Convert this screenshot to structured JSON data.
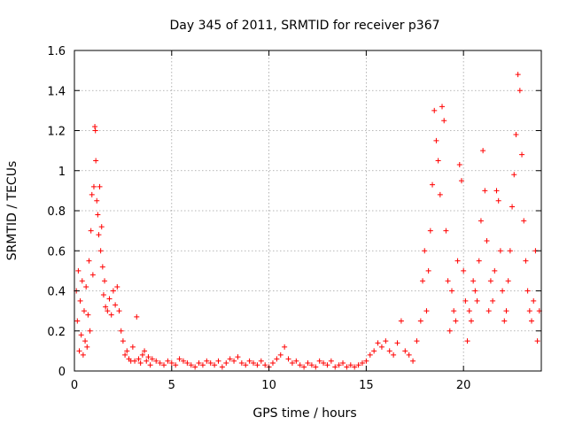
{
  "chart_data": {
    "type": "scatter",
    "title": "Day 345 of 2011, SRMTID for receiver p367",
    "xlabel": "GPS time / hours",
    "ylabel": "SRMTID / TECUs",
    "xlim": [
      0,
      24
    ],
    "ylim": [
      0,
      1.6
    ],
    "xticks": [
      0,
      5,
      10,
      15,
      20
    ],
    "xtick_labels": [
      "0",
      "5",
      "10",
      "15",
      "20"
    ],
    "yticks": [
      0,
      0.2,
      0.4,
      0.6,
      0.8,
      1,
      1.2,
      1.4,
      1.6
    ],
    "ytick_labels": [
      "0",
      "0.2",
      "0.4",
      "0.6",
      "0.8",
      "1",
      "1.2",
      "1.4",
      "1.6"
    ],
    "grid": true,
    "marker": "plus",
    "marker_color": "#ff0000",
    "series": [
      {
        "name": "SRMTID",
        "points": [
          [
            0.1,
            0.4
          ],
          [
            0.15,
            0.25
          ],
          [
            0.2,
            0.5
          ],
          [
            0.25,
            0.1
          ],
          [
            0.3,
            0.35
          ],
          [
            0.35,
            0.18
          ],
          [
            0.4,
            0.45
          ],
          [
            0.45,
            0.08
          ],
          [
            0.5,
            0.3
          ],
          [
            0.55,
            0.15
          ],
          [
            0.6,
            0.42
          ],
          [
            0.65,
            0.12
          ],
          [
            0.7,
            0.28
          ],
          [
            0.75,
            0.55
          ],
          [
            0.8,
            0.2
          ],
          [
            0.85,
            0.7
          ],
          [
            0.9,
            0.88
          ],
          [
            0.95,
            0.48
          ],
          [
            1.0,
            0.92
          ],
          [
            1.05,
            1.22
          ],
          [
            1.08,
            1.2
          ],
          [
            1.1,
            1.05
          ],
          [
            1.15,
            0.85
          ],
          [
            1.2,
            0.78
          ],
          [
            1.25,
            0.68
          ],
          [
            1.3,
            0.92
          ],
          [
            1.35,
            0.6
          ],
          [
            1.4,
            0.72
          ],
          [
            1.45,
            0.52
          ],
          [
            1.5,
            0.38
          ],
          [
            1.55,
            0.45
          ],
          [
            1.6,
            0.32
          ],
          [
            1.7,
            0.3
          ],
          [
            1.8,
            0.36
          ],
          [
            1.9,
            0.28
          ],
          [
            2.0,
            0.4
          ],
          [
            2.1,
            0.33
          ],
          [
            2.2,
            0.42
          ],
          [
            2.3,
            0.3
          ],
          [
            2.4,
            0.2
          ],
          [
            2.5,
            0.15
          ],
          [
            2.6,
            0.08
          ],
          [
            2.7,
            0.1
          ],
          [
            2.8,
            0.06
          ],
          [
            2.9,
            0.05
          ],
          [
            3.0,
            0.12
          ],
          [
            3.1,
            0.05
          ],
          [
            3.2,
            0.27
          ],
          [
            3.3,
            0.06
          ],
          [
            3.4,
            0.04
          ],
          [
            3.5,
            0.08
          ],
          [
            3.6,
            0.1
          ],
          [
            3.7,
            0.05
          ],
          [
            3.8,
            0.07
          ],
          [
            3.9,
            0.03
          ],
          [
            4.0,
            0.06
          ],
          [
            4.2,
            0.05
          ],
          [
            4.4,
            0.04
          ],
          [
            4.6,
            0.03
          ],
          [
            4.8,
            0.05
          ],
          [
            5.0,
            0.04
          ],
          [
            5.2,
            0.03
          ],
          [
            5.4,
            0.06
          ],
          [
            5.6,
            0.05
          ],
          [
            5.8,
            0.04
          ],
          [
            6.0,
            0.03
          ],
          [
            6.2,
            0.02
          ],
          [
            6.4,
            0.04
          ],
          [
            6.6,
            0.03
          ],
          [
            6.8,
            0.05
          ],
          [
            7.0,
            0.04
          ],
          [
            7.2,
            0.03
          ],
          [
            7.4,
            0.05
          ],
          [
            7.6,
            0.02
          ],
          [
            7.8,
            0.04
          ],
          [
            8.0,
            0.06
          ],
          [
            8.2,
            0.05
          ],
          [
            8.4,
            0.07
          ],
          [
            8.6,
            0.04
          ],
          [
            8.8,
            0.03
          ],
          [
            9.0,
            0.05
          ],
          [
            9.2,
            0.04
          ],
          [
            9.4,
            0.03
          ],
          [
            9.6,
            0.05
          ],
          [
            9.8,
            0.03
          ],
          [
            10.0,
            0.02
          ],
          [
            10.2,
            0.04
          ],
          [
            10.4,
            0.06
          ],
          [
            10.6,
            0.08
          ],
          [
            10.8,
            0.12
          ],
          [
            11.0,
            0.06
          ],
          [
            11.2,
            0.04
          ],
          [
            11.4,
            0.05
          ],
          [
            11.6,
            0.03
          ],
          [
            11.8,
            0.02
          ],
          [
            12.0,
            0.04
          ],
          [
            12.2,
            0.03
          ],
          [
            12.4,
            0.02
          ],
          [
            12.6,
            0.05
          ],
          [
            12.8,
            0.04
          ],
          [
            13.0,
            0.03
          ],
          [
            13.2,
            0.05
          ],
          [
            13.4,
            0.02
          ],
          [
            13.6,
            0.03
          ],
          [
            13.8,
            0.04
          ],
          [
            14.0,
            0.02
          ],
          [
            14.2,
            0.03
          ],
          [
            14.4,
            0.02
          ],
          [
            14.6,
            0.03
          ],
          [
            14.8,
            0.04
          ],
          [
            15.0,
            0.05
          ],
          [
            15.2,
            0.08
          ],
          [
            15.4,
            0.1
          ],
          [
            15.6,
            0.14
          ],
          [
            15.8,
            0.12
          ],
          [
            16.0,
            0.15
          ],
          [
            16.2,
            0.1
          ],
          [
            16.4,
            0.08
          ],
          [
            16.6,
            0.14
          ],
          [
            16.8,
            0.25
          ],
          [
            17.0,
            0.1
          ],
          [
            17.2,
            0.08
          ],
          [
            17.4,
            0.05
          ],
          [
            17.6,
            0.15
          ],
          [
            17.8,
            0.25
          ],
          [
            17.9,
            0.45
          ],
          [
            18.0,
            0.6
          ],
          [
            18.1,
            0.3
          ],
          [
            18.2,
            0.5
          ],
          [
            18.3,
            0.7
          ],
          [
            18.4,
            0.93
          ],
          [
            18.5,
            1.3
          ],
          [
            18.6,
            1.15
          ],
          [
            18.7,
            1.05
          ],
          [
            18.8,
            0.88
          ],
          [
            18.9,
            1.32
          ],
          [
            19.0,
            1.25
          ],
          [
            19.1,
            0.7
          ],
          [
            19.2,
            0.45
          ],
          [
            19.3,
            0.2
          ],
          [
            19.4,
            0.4
          ],
          [
            19.5,
            0.3
          ],
          [
            19.6,
            0.25
          ],
          [
            19.7,
            0.55
          ],
          [
            19.8,
            1.03
          ],
          [
            19.9,
            0.95
          ],
          [
            20.0,
            0.5
          ],
          [
            20.1,
            0.35
          ],
          [
            20.2,
            0.15
          ],
          [
            20.3,
            0.3
          ],
          [
            20.4,
            0.25
          ],
          [
            20.5,
            0.45
          ],
          [
            20.6,
            0.4
          ],
          [
            20.7,
            0.35
          ],
          [
            20.8,
            0.55
          ],
          [
            20.9,
            0.75
          ],
          [
            21.0,
            1.1
          ],
          [
            21.1,
            0.9
          ],
          [
            21.2,
            0.65
          ],
          [
            21.3,
            0.3
          ],
          [
            21.4,
            0.45
          ],
          [
            21.5,
            0.35
          ],
          [
            21.6,
            0.5
          ],
          [
            21.7,
            0.9
          ],
          [
            21.8,
            0.85
          ],
          [
            21.9,
            0.6
          ],
          [
            22.0,
            0.4
          ],
          [
            22.1,
            0.25
          ],
          [
            22.2,
            0.3
          ],
          [
            22.3,
            0.45
          ],
          [
            22.4,
            0.6
          ],
          [
            22.5,
            0.82
          ],
          [
            22.6,
            0.98
          ],
          [
            22.7,
            1.18
          ],
          [
            22.8,
            1.48
          ],
          [
            22.9,
            1.4
          ],
          [
            23.0,
            1.08
          ],
          [
            23.1,
            0.75
          ],
          [
            23.2,
            0.55
          ],
          [
            23.3,
            0.4
          ],
          [
            23.4,
            0.3
          ],
          [
            23.5,
            0.25
          ],
          [
            23.6,
            0.35
          ],
          [
            23.7,
            0.6
          ],
          [
            23.8,
            0.15
          ],
          [
            23.9,
            0.3
          ]
        ]
      }
    ]
  }
}
